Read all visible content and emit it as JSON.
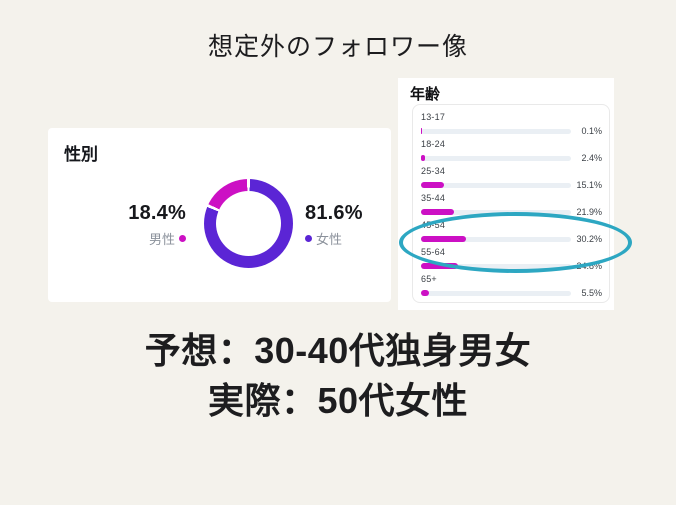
{
  "page": {
    "title": "想定外のフォロワー像",
    "background": "#f4f2ec"
  },
  "colors": {
    "male_magenta": "#cc10c4",
    "female_purple": "#5b25d5",
    "bar_magenta": "#cc10c4",
    "bar_track": "#eaeff4",
    "highlight_teal": "#2da7c2",
    "card_white": "#ffffff",
    "text_dark": "#1d1d1f",
    "text_gray": "#8b919b"
  },
  "gender_card": {
    "title": "性別",
    "male": {
      "pct_label": "18.4%",
      "label": "男性",
      "value": 18.4
    },
    "female": {
      "pct_label": "81.6%",
      "label": "女性",
      "value": 81.6
    }
  },
  "age_card": {
    "title": "年齢",
    "rows": [
      {
        "label": "13-17",
        "pct_label": "0.1%",
        "value": 0.1
      },
      {
        "label": "18-24",
        "pct_label": "2.4%",
        "value": 2.4
      },
      {
        "label": "25-34",
        "pct_label": "15.1%",
        "value": 15.1
      },
      {
        "label": "35-44",
        "pct_label": "21.9%",
        "value": 21.9
      },
      {
        "label": "45-54",
        "pct_label": "30.2%",
        "value": 30.2
      },
      {
        "label": "55-64",
        "pct_label": "24.8%",
        "value": 24.8
      },
      {
        "label": "65+",
        "pct_label": "5.5%",
        "value": 5.5
      }
    ]
  },
  "conclusion": {
    "line1": "予想：30-40代独身男女",
    "line2": "実際：50代女性"
  },
  "chart_data": [
    {
      "type": "pie",
      "style": "donut",
      "title": "性別",
      "labels": [
        "男性",
        "女性"
      ],
      "values": [
        18.4,
        81.6
      ],
      "colors": [
        "#cc10c4",
        "#5b25d5"
      ],
      "legend_position": "sides"
    },
    {
      "type": "bar",
      "orientation": "horizontal",
      "title": "年齢",
      "categories": [
        "13-17",
        "18-24",
        "25-34",
        "35-44",
        "45-54",
        "55-64",
        "65+"
      ],
      "values": [
        0.1,
        2.4,
        15.1,
        21.9,
        30.2,
        24.8,
        5.5
      ],
      "unit": "%",
      "xlim": [
        0,
        100
      ],
      "bar_color": "#cc10c4",
      "annotation": "teal ellipse highlights 45-54 and 55-64 rows"
    }
  ]
}
